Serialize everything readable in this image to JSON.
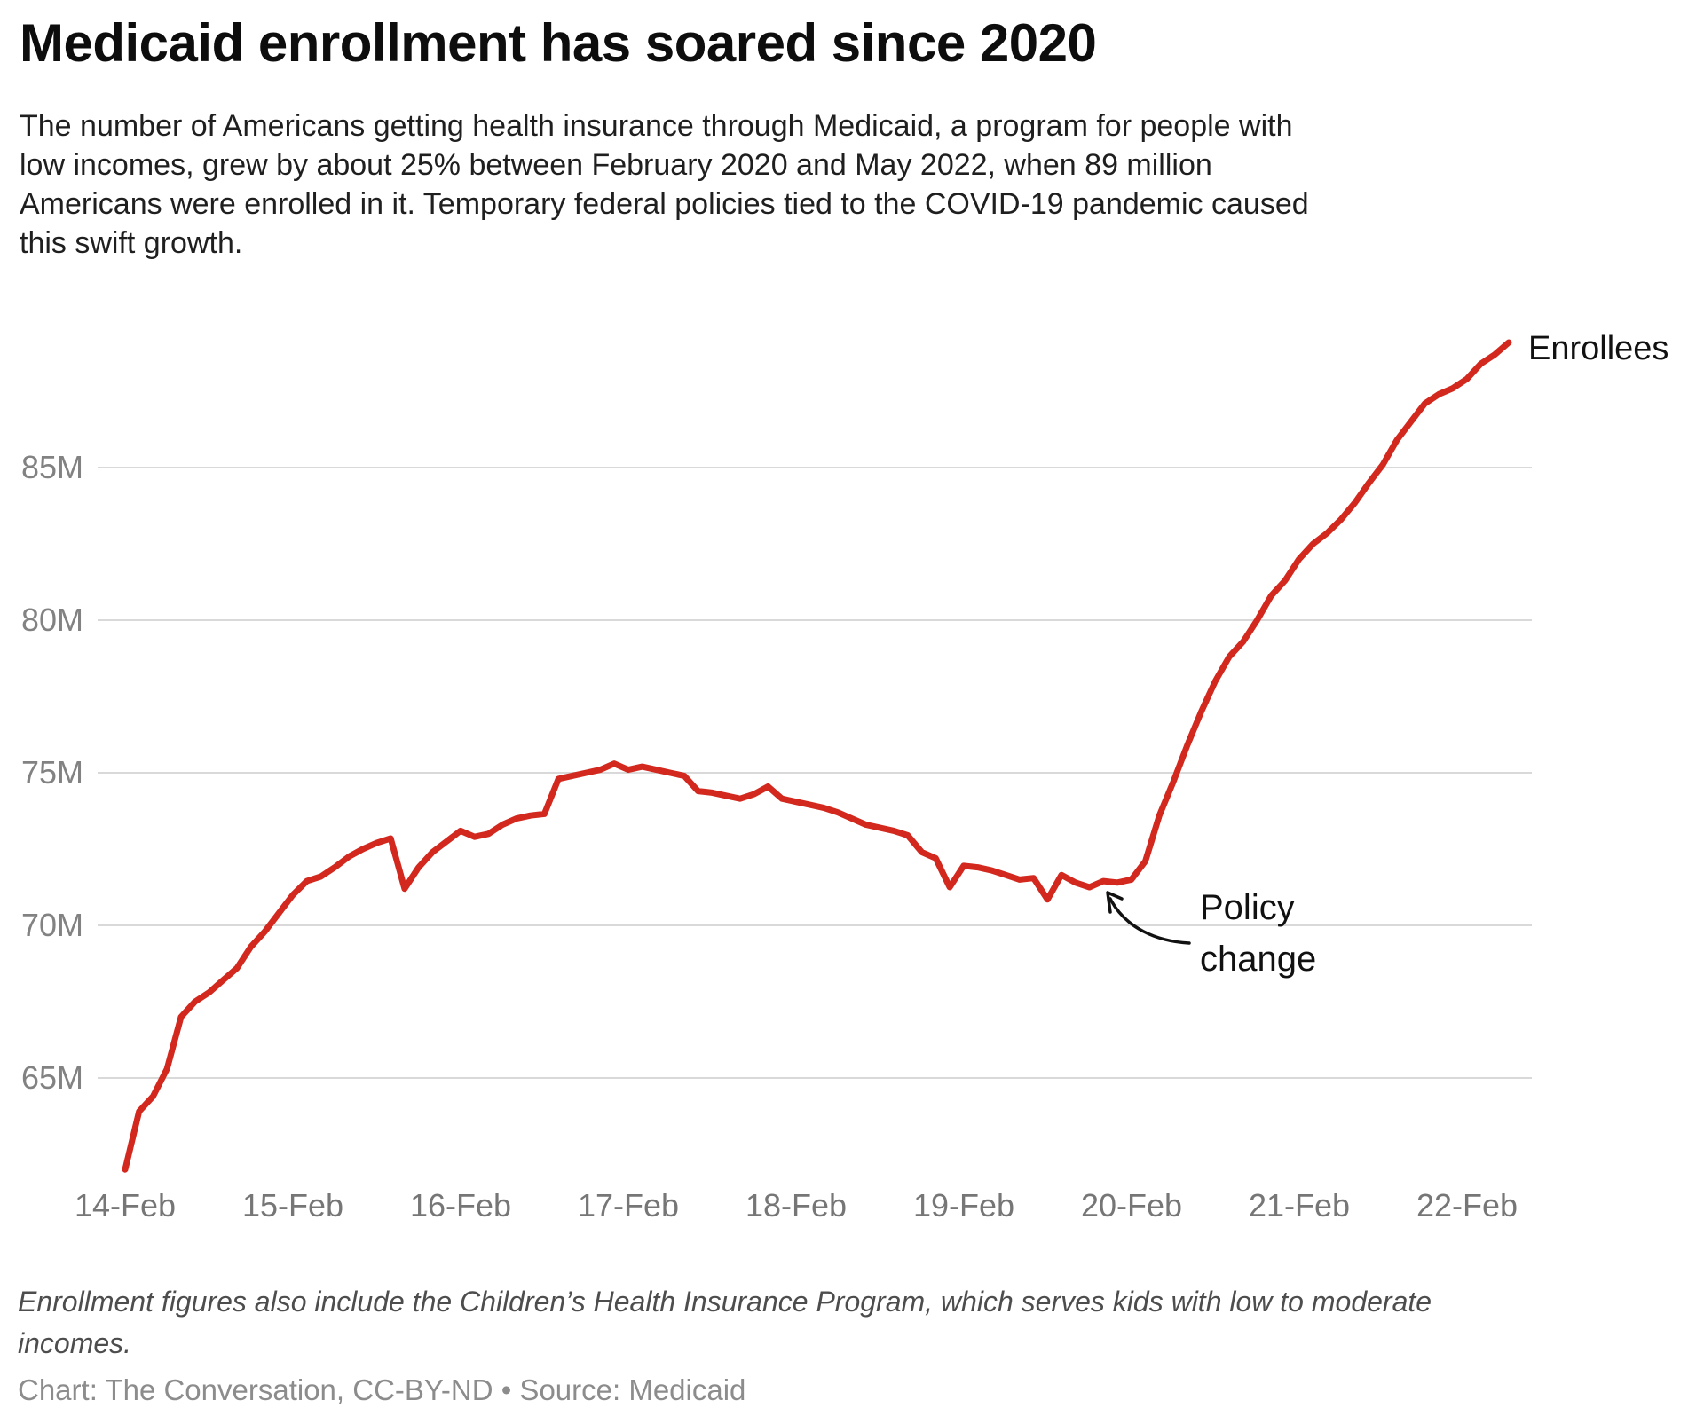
{
  "header": {
    "title": "Medicaid enrollment has soared since 2020",
    "subtitle_lines": [
      "The number of Americans getting health insurance through Medicaid, a program for people with",
      "low incomes, grew by about 25% between February 2020 and May 2022, when 89 million",
      "Americans were enrolled in it. Temporary federal policies tied to the COVID-19 pandemic caused",
      "this swift growth."
    ]
  },
  "chart_data": {
    "type": "line",
    "title": "Medicaid enrollment has soared since 2020",
    "unit": "millions of enrollees",
    "x_start": "2014-02",
    "x_end": "2022-05",
    "x_interval": "monthly",
    "ylim": [
      61,
      90
    ],
    "grid": "horizontal",
    "legend_position": "end-of-line",
    "series": [
      {
        "name": "Enrollees",
        "values": [
          62.0,
          63.9,
          64.4,
          65.3,
          67.0,
          67.5,
          67.8,
          68.2,
          68.6,
          69.3,
          69.8,
          70.4,
          71.0,
          71.45,
          71.6,
          71.9,
          72.25,
          72.5,
          72.7,
          72.85,
          71.2,
          71.9,
          72.4,
          72.75,
          73.1,
          72.9,
          73.0,
          73.3,
          73.5,
          73.6,
          73.65,
          74.8,
          74.9,
          75.0,
          75.1,
          75.3,
          75.1,
          75.2,
          75.1,
          75.0,
          74.9,
          74.4,
          74.35,
          74.25,
          74.15,
          74.3,
          74.55,
          74.15,
          74.05,
          73.95,
          73.85,
          73.7,
          73.5,
          73.3,
          73.2,
          73.1,
          72.95,
          72.4,
          72.2,
          71.25,
          71.95,
          71.9,
          71.8,
          71.65,
          71.5,
          71.55,
          70.85,
          71.65,
          71.4,
          71.25,
          71.45,
          71.4,
          71.5,
          72.1,
          73.6,
          74.7,
          75.9,
          77.0,
          78.0,
          78.8,
          79.3,
          80.0,
          80.8,
          81.3,
          82.0,
          82.5,
          82.85,
          83.3,
          83.85,
          84.5,
          85.1,
          85.9,
          86.5,
          87.1,
          87.4,
          87.6,
          87.9,
          88.4,
          88.7,
          89.1
        ]
      }
    ],
    "yticks": [
      {
        "value": 85,
        "label": "85M"
      },
      {
        "value": 80,
        "label": "80M"
      },
      {
        "value": 75,
        "label": "75M"
      },
      {
        "value": 70,
        "label": "70M"
      },
      {
        "value": 65,
        "label": "65M"
      }
    ],
    "xticks": [
      "14-Feb",
      "15-Feb",
      "16-Feb",
      "17-Feb",
      "18-Feb",
      "19-Feb",
      "20-Feb",
      "21-Feb",
      "22-Feb"
    ],
    "annotations": {
      "series_label": "Enrollees",
      "policy_change": {
        "text": "Policy change",
        "lines": [
          "Policy",
          "change"
        ],
        "points_to": "2020-02"
      }
    }
  },
  "footer": {
    "note_lines": [
      "Enrollment figures also include the Children’s Health Insurance Program, which serves kids with low to moderate",
      "incomes."
    ],
    "credit": "Chart: The Conversation, CC-BY-ND • Source: Medicaid"
  },
  "colors": {
    "line": "#d2281e",
    "grid": "#d9d9d9",
    "tick_text": "#767676",
    "annotation_text": "#111111"
  }
}
